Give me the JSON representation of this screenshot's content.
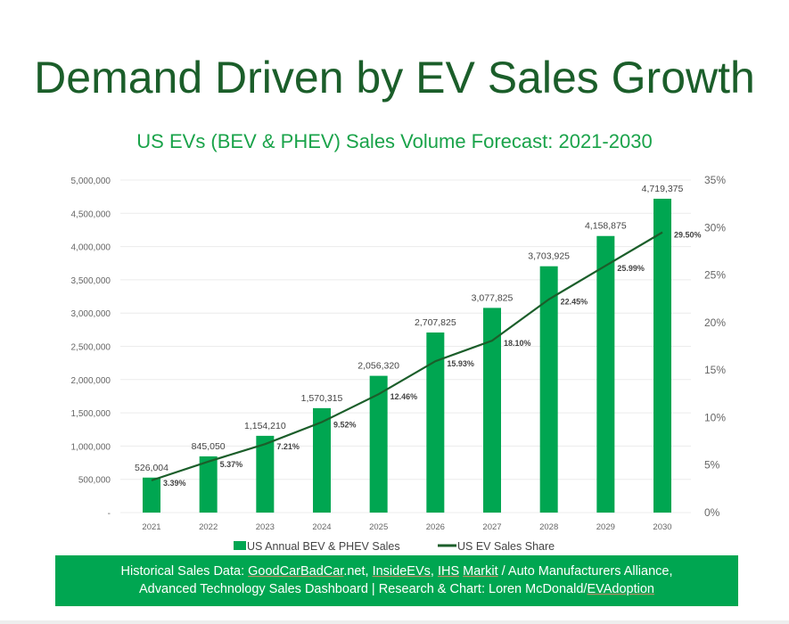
{
  "title": "Demand Driven by EV Sales Growth",
  "chart_data": {
    "type": "bar+line",
    "title": "US EVs (BEV & PHEV) Sales Volume Forecast: 2021-2030",
    "categories": [
      "2021",
      "2022",
      "2023",
      "2024",
      "2025",
      "2026",
      "2027",
      "2028",
      "2029",
      "2030"
    ],
    "series": [
      {
        "name": "US Annual BEV & PHEV Sales",
        "type": "bar",
        "axis": "left",
        "color": "#00a651",
        "values": [
          526004,
          845050,
          1154210,
          1570315,
          2056320,
          2707825,
          3077825,
          3703925,
          4158875,
          4719375
        ],
        "labels": [
          "526,004",
          "845,050",
          "1,154,210",
          "1,570,315",
          "2,056,320",
          "2,707,825",
          "3,077,825",
          "3,703,925",
          "4,158,875",
          "4,719,375"
        ]
      },
      {
        "name": "US EV Sales Share",
        "type": "line",
        "axis": "right",
        "color": "#1b5e2a",
        "values": [
          3.39,
          5.37,
          7.21,
          9.52,
          12.46,
          15.93,
          18.1,
          22.45,
          25.99,
          29.5
        ],
        "labels": [
          "3.39%",
          "5.37%",
          "7.21%",
          "9.52%",
          "12.46%",
          "15.93%",
          "18.10%",
          "22.45%",
          "25.99%",
          "29.50%"
        ]
      }
    ],
    "ylim": [
      0,
      5000000
    ],
    "y_ticks": [
      "-",
      "500,000",
      "1,000,000",
      "1,500,000",
      "2,000,000",
      "2,500,000",
      "3,000,000",
      "3,500,000",
      "4,000,000",
      "4,500,000",
      "5,000,000"
    ],
    "y2lim": [
      0,
      35
    ],
    "y2_ticks": [
      "0%",
      "5%",
      "10%",
      "15%",
      "20%",
      "25%",
      "30%",
      "35%"
    ],
    "grid": true,
    "legend": "bottom"
  },
  "footer": {
    "line1_prefix": "Historical Sales Data: ",
    "link1": "GoodCarBadCar",
    "line1_mid1": ".net, ",
    "link2": "InsideEVs",
    "line1_mid2": ", ",
    "link3": "IHS",
    "line1_mid3": " ",
    "link4": "Markit",
    "line1_suffix": " / Auto Manufacturers Alliance,",
    "line2_prefix": "Advanced Technology Sales Dashboard | Research & Chart: Loren McDonald/",
    "link5": "EVAdoption"
  }
}
